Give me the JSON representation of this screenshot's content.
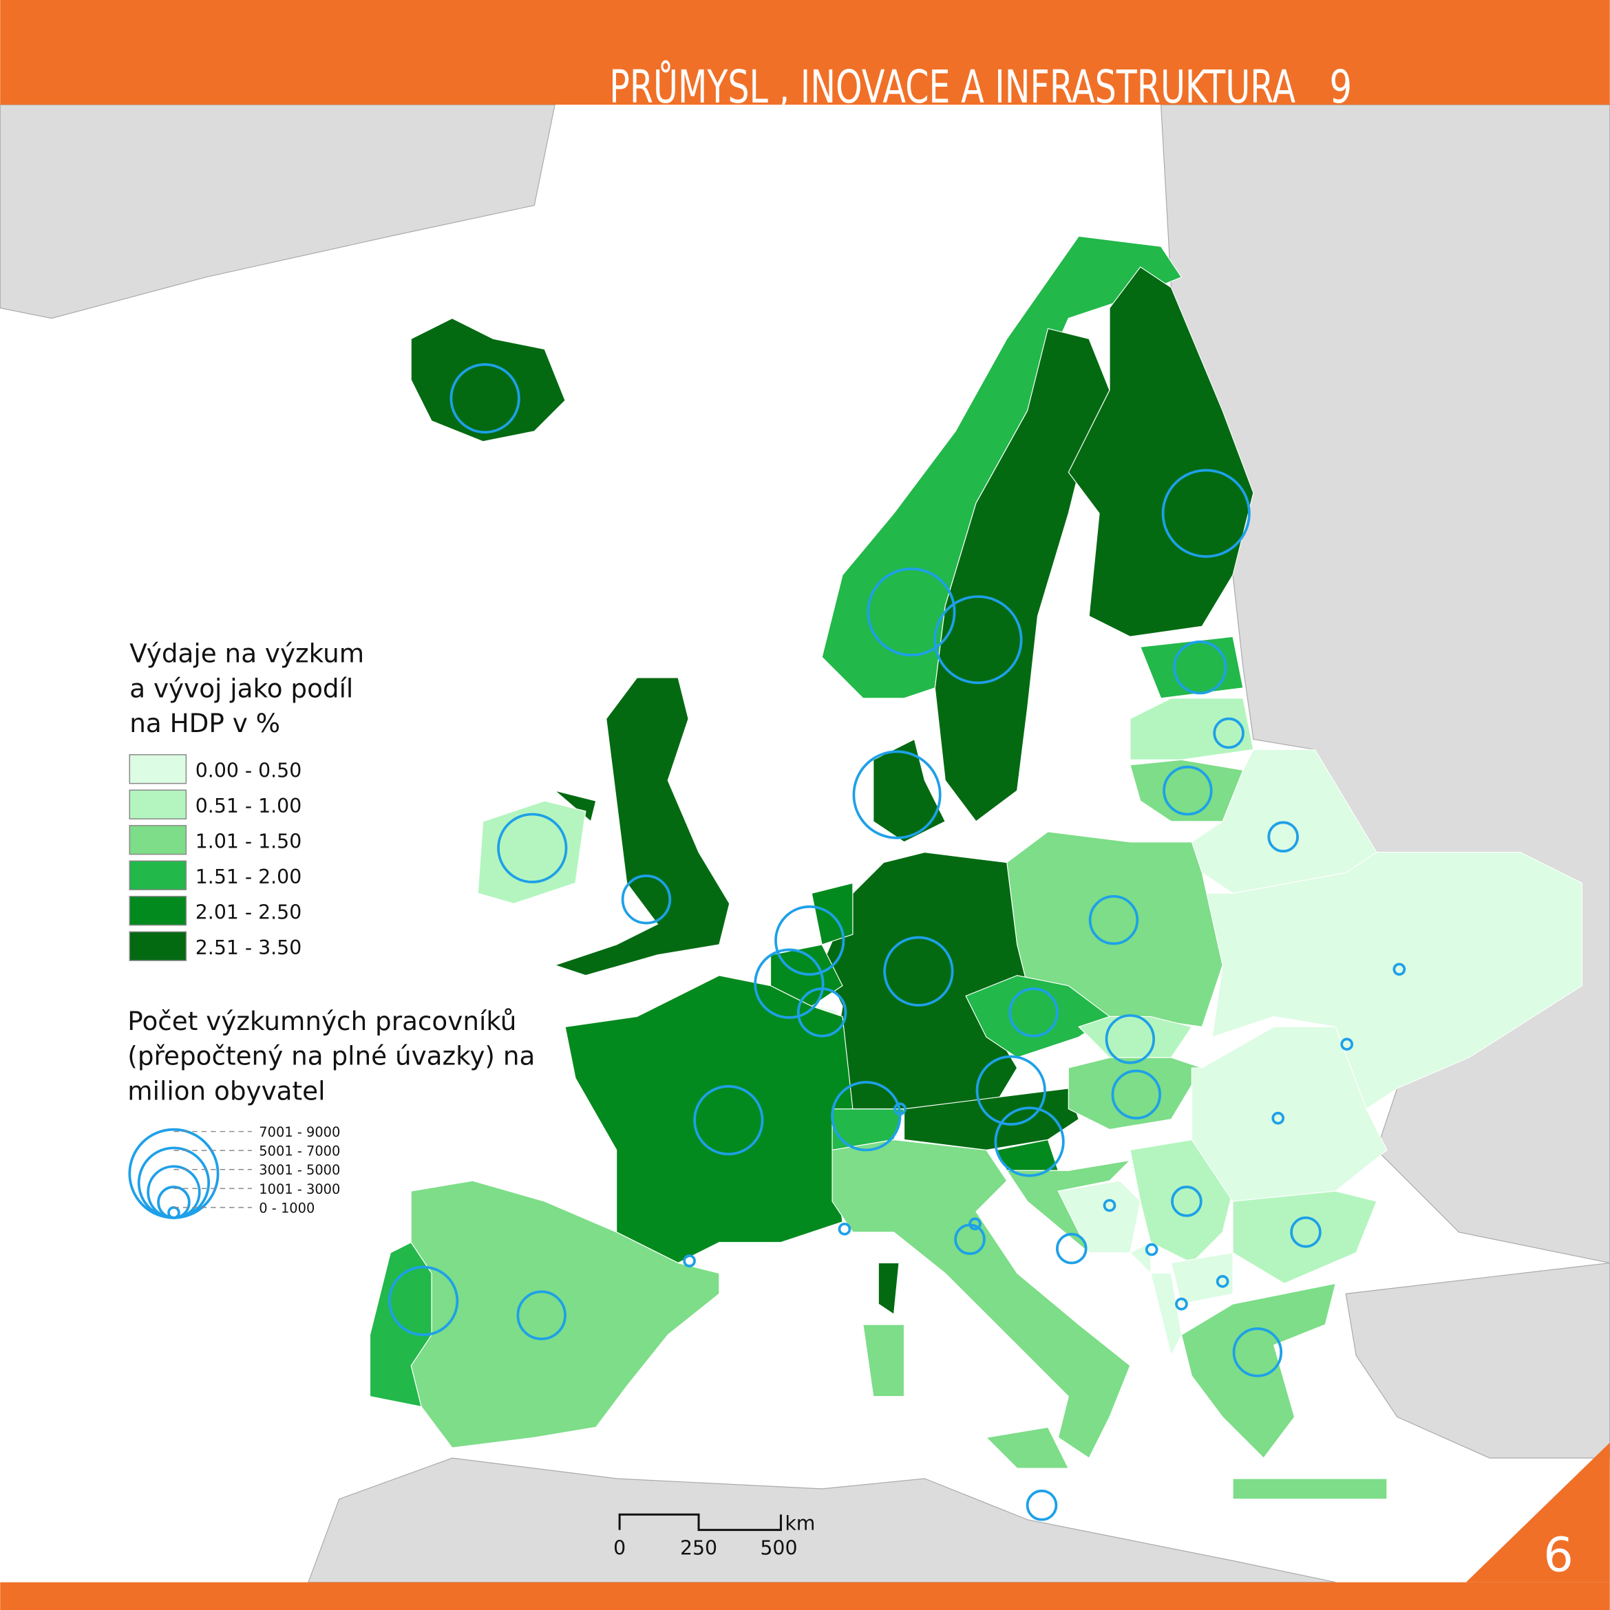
{
  "header": {
    "title": "PRŮMYSL , INOVACE A INFRASTRUKTURA",
    "chapter": "9"
  },
  "page_number": "6",
  "legend_fill": {
    "title": [
      "Výdaje na výzkum",
      "a vývoj jako podíl",
      "na HDP v %"
    ],
    "classes": [
      {
        "label": "0.00 - 0.50",
        "color": "#dcfce3"
      },
      {
        "label": "0.51 - 1.00",
        "color": "#b4f5bf"
      },
      {
        "label": "1.01 - 1.50",
        "color": "#7ddd88"
      },
      {
        "label": "1.51 - 2.00",
        "color": "#22b84a"
      },
      {
        "label": "2.01 - 2.50",
        "color": "#038a1e"
      },
      {
        "label": "2.51 - 3.50",
        "color": "#036a12"
      }
    ]
  },
  "legend_circles": {
    "title": [
      "Počet výzkumných pracovníků",
      "(přepočtený na plné úvazky) na",
      "milion obyvatel"
    ],
    "classes": [
      "7001 - 9000",
      "5001 - 7000",
      "3001 - 5000",
      "1001 - 3000",
      "0 - 1000"
    ]
  },
  "scale_bar": {
    "labels": [
      "0",
      "250",
      "500"
    ],
    "unit": "km"
  }
}
